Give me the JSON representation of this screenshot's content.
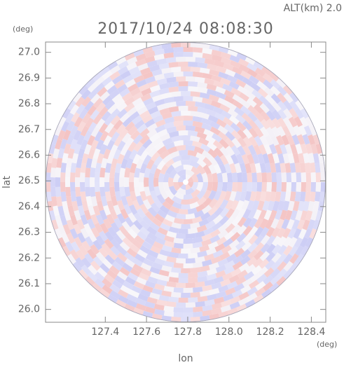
{
  "chart_data": {
    "type": "ppi",
    "title": "2017/10/24 08:08:30",
    "annotation": "ALT(km) 2.0",
    "x_unit": "(deg)",
    "y_unit": "(deg)",
    "x_label": "lon",
    "y_label": "lat",
    "xlim": [
      127.11,
      128.47
    ],
    "ylim": [
      25.95,
      27.04
    ],
    "xticks": [
      127.4,
      127.6,
      127.8,
      {
        "value": 128.0,
        "label": "128.0"
      },
      128.2,
      128.4
    ],
    "yticks": [
      {
        "value": 26.0,
        "label": "26.0"
      },
      26.1,
      26.2,
      26.3,
      26.4,
      26.5,
      26.6,
      26.7,
      26.8,
      26.9,
      {
        "value": 27.0,
        "label": "27.0"
      }
    ]
  }
}
